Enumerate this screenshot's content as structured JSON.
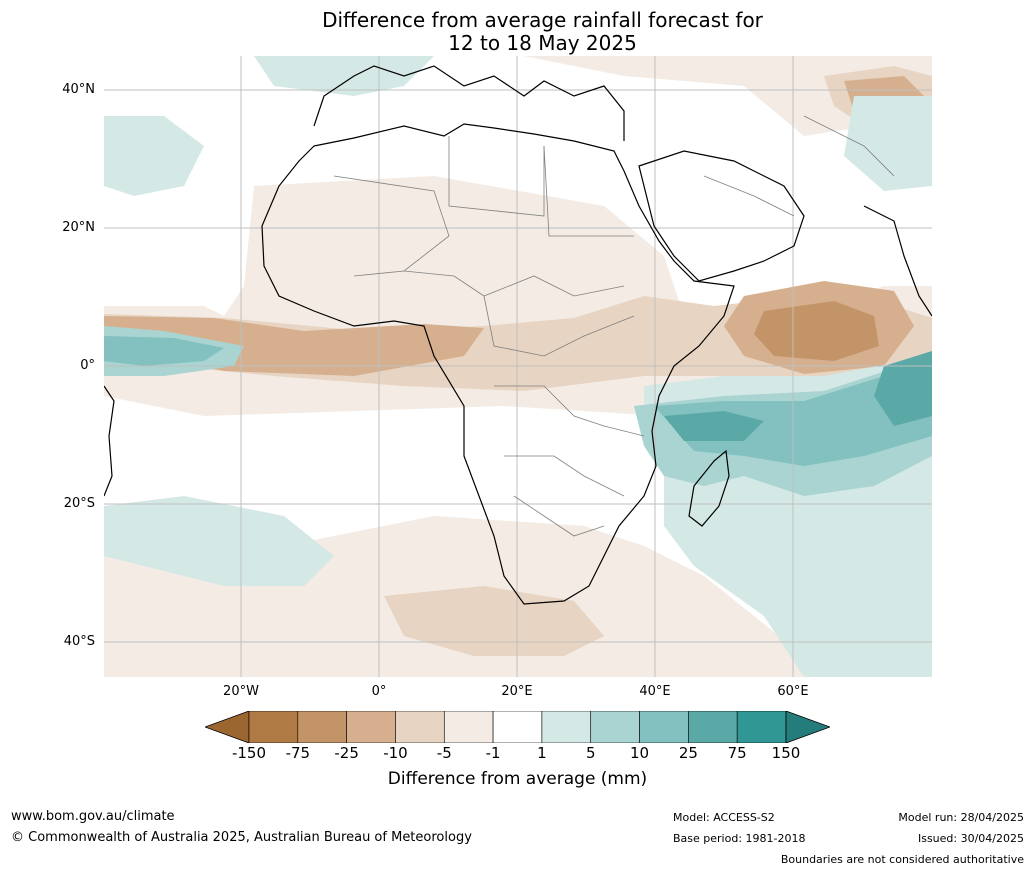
{
  "title": {
    "line1": "Difference from average rainfall forecast for",
    "line2": "12 to 18 May 2025"
  },
  "axes": {
    "lat_labels": [
      "40°N",
      "20°N",
      "0°",
      "20°S",
      "40°S"
    ],
    "lon_labels": [
      "20°W",
      "0°",
      "20°E",
      "40°E",
      "60°E"
    ]
  },
  "colorbar": {
    "ticks": [
      "-150",
      "-75",
      "-25",
      "-10",
      "-5",
      "-1",
      "1",
      "5",
      "10",
      "25",
      "75",
      "150"
    ],
    "colors": [
      "#9c6631",
      "#b07a45",
      "#c39468",
      "#d6b08e",
      "#e8d4c2",
      "#f3ebe4",
      "#ffffff",
      "#d4e8e6",
      "#a9d4d2",
      "#82c1bf",
      "#5aa9a7",
      "#319795",
      "#247d7b"
    ],
    "label": "Difference from average (mm)"
  },
  "footer": {
    "url": "www.bom.gov.au/climate",
    "copyright": "© Commonwealth of Australia 2025, Australian Bureau of Meteorology",
    "model": "Model: ACCESS-S2",
    "base_period": "Base period: 1981-2018",
    "model_run": "Model run: 28/04/2025",
    "issued": "Issued: 30/04/2025",
    "boundaries_note": "Boundaries are not considered authoritative"
  },
  "map_colors": {
    "land_outline": "#000000",
    "borders": "#808080",
    "grid": "#bfbfbf"
  }
}
